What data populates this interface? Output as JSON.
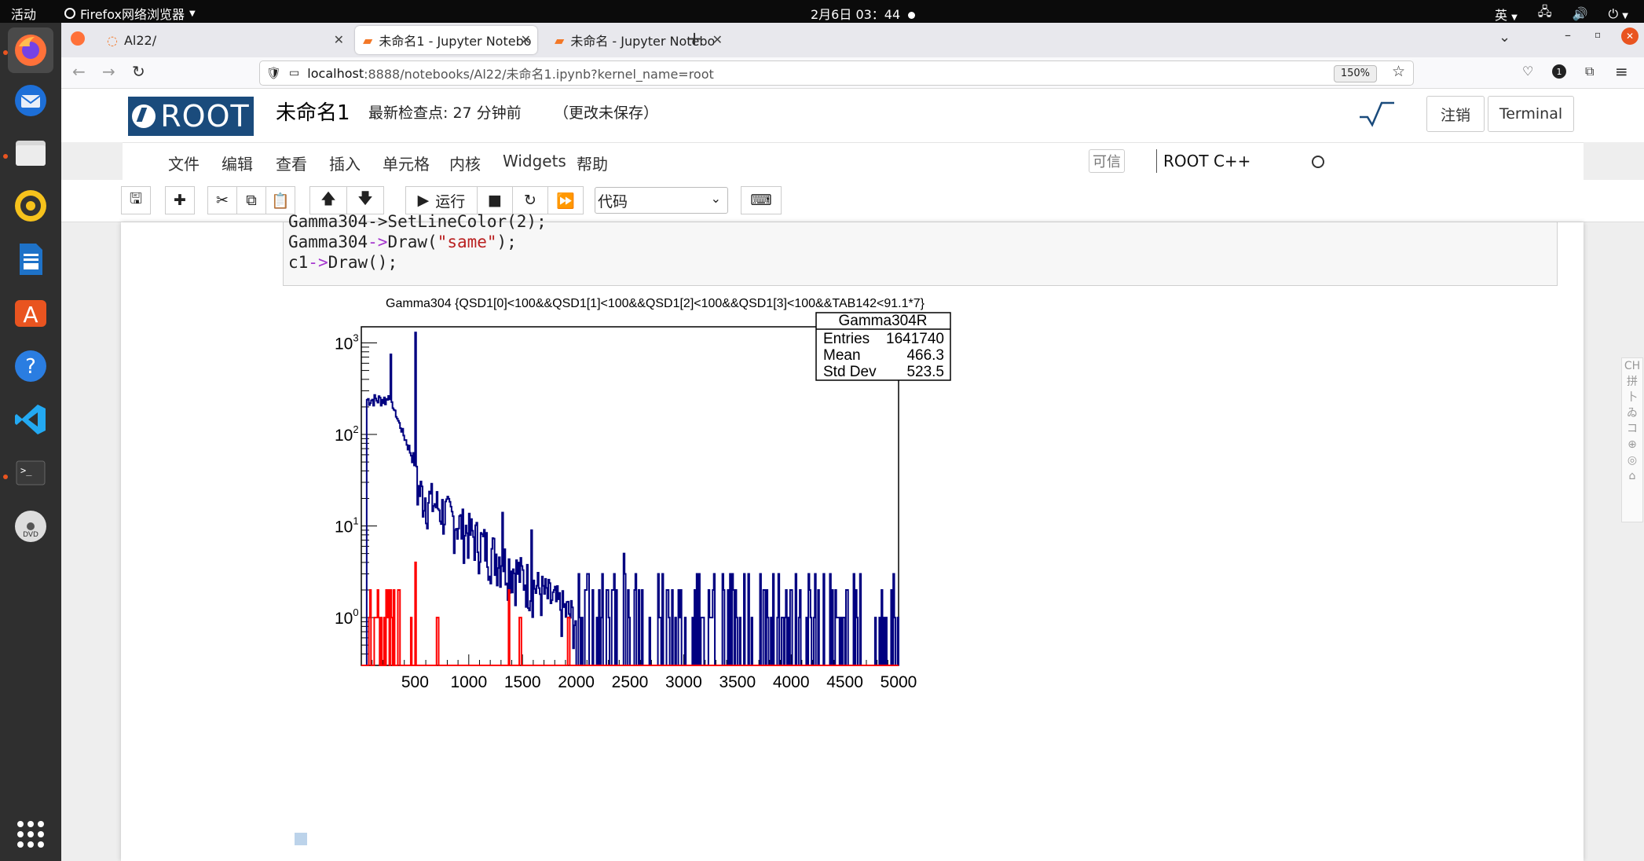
{
  "system_bar": {
    "activities": "活动",
    "app": "Firefox网络浏览器",
    "clock": "2月6日 03：44",
    "input_method": "英"
  },
  "dock": {
    "apps": [
      "firefox",
      "thunderbird",
      "files",
      "rhythmbox",
      "writer",
      "app-center",
      "help",
      "vscode",
      "terminal",
      "dvd"
    ]
  },
  "browser": {
    "tabs": [
      {
        "label": "Al22/"
      },
      {
        "label": "未命名1 - Jupyter Notebo"
      },
      {
        "label": "未命名 - Jupyter Notebo"
      }
    ],
    "url_host": "localhost",
    "url_path": ":8888/notebooks/Al22/未命名1.ipynb?kernel_name=root",
    "zoom": "150%",
    "notif_count": "1"
  },
  "jupyter": {
    "logo_text": "ROOT",
    "notebook_title": "未命名1",
    "checkpoint": "最新检查点: 27 分钟前",
    "unsaved": "（更改未保存）",
    "logout": "注销",
    "terminal": "Terminal",
    "menus": [
      "文件",
      "编辑",
      "查看",
      "插入",
      "单元格",
      "内核",
      "Widgets",
      "帮助"
    ],
    "trusted": "可信",
    "kernel": "ROOT C++",
    "run_label": "运行",
    "cell_type": "代码"
  },
  "code": {
    "line0": "Gamma304->SetLineColor(2);",
    "line1_a": "Gamma304",
    "line1_op": "->",
    "line1_b": "Draw(",
    "line1_str": "\"same\"",
    "line1_c": ");",
    "line2_a": "c1",
    "line2_op": "->",
    "line2_b": "Draw();"
  },
  "chart_data": {
    "type": "histogram",
    "title": "Gamma304 {QSD1[0]<100&&QSD1[1]<100&&QSD1[2]<100&&QSD1[3]<100&&TAB142<91.1*7}",
    "xlim": [
      0,
      5000
    ],
    "yscale": "log",
    "ylim": [
      0.3,
      1500
    ],
    "x_ticks": [
      500,
      1000,
      1500,
      2000,
      2500,
      3000,
      3500,
      4000,
      4500,
      5000
    ],
    "y_ticks": [
      "10^0",
      "10^1",
      "10^2",
      "10^3"
    ],
    "stats": {
      "name": "Gamma304R",
      "rows": [
        {
          "label": "Entries",
          "value": "1641740"
        },
        {
          "label": "Mean",
          "value": "466.3"
        },
        {
          "label": "Std Dev",
          "value": "523.5"
        }
      ]
    },
    "series": [
      {
        "color": "#000080",
        "peaks": [
          [
            270,
            750
          ],
          [
            500,
            1300
          ],
          [
            1310,
            14
          ],
          [
            1580,
            9
          ],
          [
            2440,
            5
          ],
          [
            4930,
            2
          ]
        ],
        "continuum_start": 250,
        "continuum_level": 260
      },
      {
        "color": "#ff0000",
        "peaks": [
          [
            500,
            4
          ]
        ]
      }
    ]
  }
}
